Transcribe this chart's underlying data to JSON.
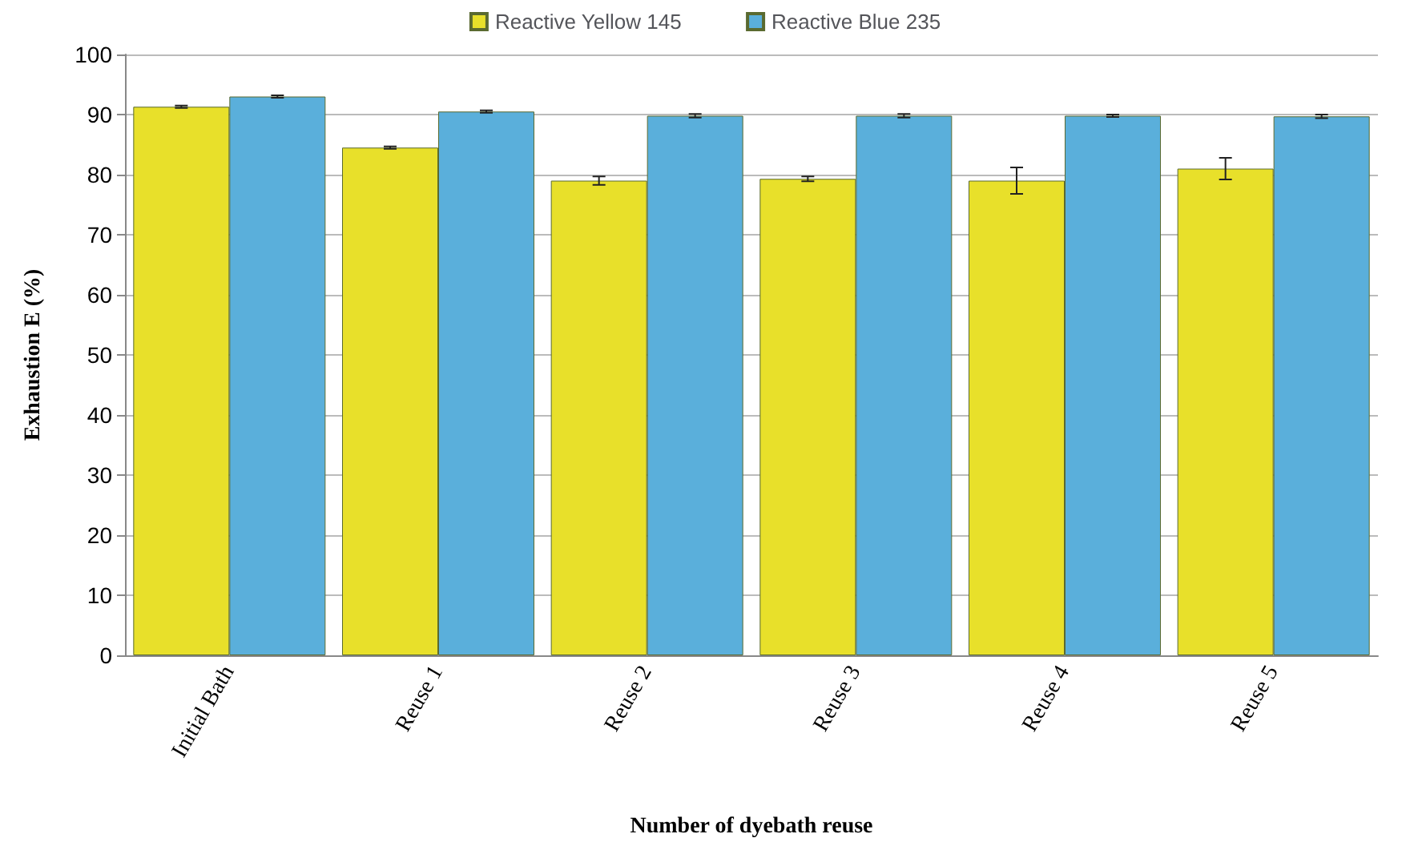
{
  "chart_data": {
    "type": "bar",
    "xlabel": "Number of dyebath reuse",
    "ylabel": "Exhaustion E (%)",
    "categories": [
      "Initial Bath",
      "Reuse 1",
      "Reuse 2",
      "Reuse 3",
      "Reuse 4",
      "Reuse 5"
    ],
    "series": [
      {
        "name": "Reactive Yellow 145",
        "color": "#e8e02a",
        "values": [
          91.3,
          84.5,
          79,
          79.3,
          79,
          81
        ],
        "errors": [
          0.2,
          0.2,
          0.7,
          0.4,
          2.2,
          1.8
        ]
      },
      {
        "name": "Reactive Blue 235",
        "color": "#5aafdb",
        "values": [
          93,
          90.5,
          89.8,
          89.8,
          89.8,
          89.7
        ],
        "errors": [
          0.2,
          0.2,
          0.3,
          0.3,
          0.2,
          0.3
        ]
      }
    ],
    "ylim": [
      0,
      100
    ],
    "yticks": [
      0,
      10,
      20,
      30,
      40,
      50,
      60,
      70,
      80,
      90,
      100
    ],
    "grid": "y",
    "legend": "top"
  }
}
